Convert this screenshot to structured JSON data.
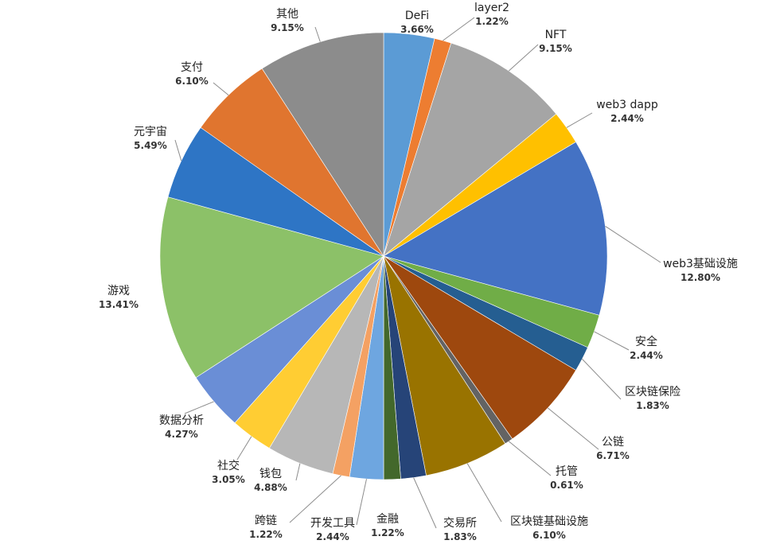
{
  "chart_data": {
    "type": "pie",
    "unit": "%",
    "slices": [
      {
        "label": "DeFi",
        "value": 3.66,
        "display": "3.66%",
        "color": "#5b9bd5"
      },
      {
        "label": "layer2",
        "value": 1.22,
        "display": "1.22%",
        "color": "#ed7d31"
      },
      {
        "label": "NFT",
        "value": 9.15,
        "display": "9.15%",
        "color": "#a5a5a5"
      },
      {
        "label": "web3 dapp",
        "value": 2.44,
        "display": "2.44%",
        "color": "#ffc000"
      },
      {
        "label": "web3基础设施",
        "value": 12.8,
        "display": "12.80%",
        "color": "#4472c4"
      },
      {
        "label": "安全",
        "value": 2.44,
        "display": "2.44%",
        "color": "#70ad47"
      },
      {
        "label": "区块链保险",
        "value": 1.83,
        "display": "1.83%",
        "color": "#255e91"
      },
      {
        "label": "公链",
        "value": 6.71,
        "display": "6.71%",
        "color": "#9e480e"
      },
      {
        "label": "托管",
        "value": 0.61,
        "display": "0.61%",
        "color": "#636363"
      },
      {
        "label": "区块链基础设施",
        "value": 6.1,
        "display": "6.10%",
        "color": "#997300"
      },
      {
        "label": "交易所",
        "value": 1.83,
        "display": "1.83%",
        "color": "#264478"
      },
      {
        "label": "金融",
        "value": 1.22,
        "display": "1.22%",
        "color": "#43682b"
      },
      {
        "label": "开发工具",
        "value": 2.44,
        "display": "2.44%",
        "color": "#6ea6e0"
      },
      {
        "label": "跨链",
        "value": 1.22,
        "display": "1.22%",
        "color": "#f4a163"
      },
      {
        "label": "钱包",
        "value": 4.88,
        "display": "4.88%",
        "color": "#b7b7b7"
      },
      {
        "label": "社交",
        "value": 3.05,
        "display": "3.05%",
        "color": "#ffcd33"
      },
      {
        "label": "数据分析",
        "value": 4.27,
        "display": "4.27%",
        "color": "#6a8ed6"
      },
      {
        "label": "游戏",
        "value": 13.41,
        "display": "13.41%",
        "color": "#8cc168"
      },
      {
        "label": "元宇宙",
        "value": 5.49,
        "display": "5.49%",
        "color": "#2e75c5"
      },
      {
        "label": "支付",
        "value": 6.1,
        "display": "6.10%",
        "color": "#e0752f"
      },
      {
        "label": "其他",
        "value": 9.15,
        "display": "9.15%",
        "color": "#8c8c8c"
      }
    ],
    "title": "",
    "legend": "none",
    "data_labels": "outside with leader lines"
  }
}
